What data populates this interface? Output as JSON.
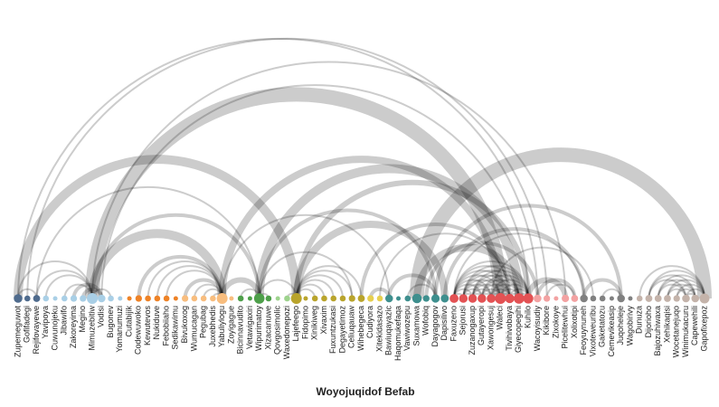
{
  "title": "Woyojuqidof Befab",
  "groups": [
    {
      "color": "#4f6b8d"
    },
    {
      "color": "#a9cfe6"
    },
    {
      "color": "#ee8226"
    },
    {
      "color": "#f8bd7e"
    },
    {
      "color": "#4e9f4a"
    },
    {
      "color": "#9dd38d"
    },
    {
      "color": "#b9a42c"
    },
    {
      "color": "#e6cf4f"
    },
    {
      "color": "#3e8f8e"
    },
    {
      "color": "#e35254"
    },
    {
      "color": "#f3a2a2"
    },
    {
      "color": "#808080"
    },
    {
      "color": "#c4b3aa"
    }
  ],
  "nodes": [
    {
      "label": "Zupemeguwot",
      "group": 0
    },
    {
      "label": "Gofifadegi",
      "group": 0
    },
    {
      "label": "Rejifovayewe",
      "group": 0
    },
    {
      "label": "Yavipoya",
      "group": 1
    },
    {
      "label": "Cuwunojeku",
      "group": 1
    },
    {
      "label": "Jibawifo",
      "group": 1
    },
    {
      "label": "Zakoreyima",
      "group": 1
    },
    {
      "label": "Megino",
      "group": 1
    },
    {
      "label": "Mimuzebitiw",
      "group": 1
    },
    {
      "label": "Vodisi",
      "group": 1
    },
    {
      "label": "Bugonev",
      "group": 1
    },
    {
      "label": "Yomanumuzi",
      "group": 1
    },
    {
      "label": "Cutabijik",
      "group": 2
    },
    {
      "label": "Codewuwoko",
      "group": 2
    },
    {
      "label": "Kewutevos",
      "group": 2
    },
    {
      "label": "Nukiduve",
      "group": 2
    },
    {
      "label": "Febobiiaho",
      "group": 2
    },
    {
      "label": "Sedikawimu",
      "group": 2
    },
    {
      "label": "Bivukoxog",
      "group": 3
    },
    {
      "label": "Wumucagan",
      "group": 3
    },
    {
      "label": "Pegubag",
      "group": 3
    },
    {
      "label": "Juxebhedis",
      "group": 3
    },
    {
      "label": "Yabuliylogu",
      "group": 3
    },
    {
      "label": "Zoyigague",
      "group": 3
    },
    {
      "label": "Bicinnavudito",
      "group": 4
    },
    {
      "label": "Vetawigaxiri",
      "group": 4
    },
    {
      "label": "Wipurimatoy",
      "group": 4
    },
    {
      "label": "Xizacanuwe",
      "group": 4
    },
    {
      "label": "Qovgosimolic",
      "group": 5
    },
    {
      "label": "Waxedonepozi",
      "group": 5
    },
    {
      "label": "Lajefeego",
      "group": 6
    },
    {
      "label": "Fidopimo",
      "group": 6
    },
    {
      "label": "Xinikiweg",
      "group": 6
    },
    {
      "label": "Xivaxim",
      "group": 6
    },
    {
      "label": "Fuxuntzukasi",
      "group": 6
    },
    {
      "label": "Degayetimoz",
      "group": 6
    },
    {
      "label": "Celiuqauaw",
      "group": 6
    },
    {
      "label": "Wihebegeca",
      "group": 6
    },
    {
      "label": "Cudiyora",
      "group": 7
    },
    {
      "label": "Xitekidasazo",
      "group": 7
    },
    {
      "label": "Bawiuqayazic",
      "group": 8
    },
    {
      "label": "Haqomukefaqa",
      "group": 8
    },
    {
      "label": "Vawiwozepu",
      "group": 8
    },
    {
      "label": "Suxamowa",
      "group": 8
    },
    {
      "label": "Wofobiq",
      "group": 8
    },
    {
      "label": "Dayagogov",
      "group": 8
    },
    {
      "label": "Dapisilivo",
      "group": 8
    },
    {
      "label": "Faxuzeno",
      "group": 9
    },
    {
      "label": "Sejorusi",
      "group": 9
    },
    {
      "label": "Zuzanogaxup",
      "group": 9
    },
    {
      "label": "Gutayeropi",
      "group": 9
    },
    {
      "label": "Xawongesuj",
      "group": 9
    },
    {
      "label": "Waleci",
      "group": 9
    },
    {
      "label": "Tivihivobaya",
      "group": 9
    },
    {
      "label": "Giyecopegihi",
      "group": 9
    },
    {
      "label": "Kuhilo",
      "group": 9
    },
    {
      "label": "Wacoyisudiy",
      "group": 10
    },
    {
      "label": "Kikibore",
      "group": 10
    },
    {
      "label": "Zixokoye",
      "group": 10
    },
    {
      "label": "Picelitewhui",
      "group": 10
    },
    {
      "label": "Xolixotipi",
      "group": 10
    },
    {
      "label": "Feoyuynuneh",
      "group": 11
    },
    {
      "label": "Vixoteweuribu",
      "group": 11
    },
    {
      "label": "Gaketatozu",
      "group": 11
    },
    {
      "label": "Cemevikeasip",
      "group": 11
    },
    {
      "label": "Juqoheleje",
      "group": 11
    },
    {
      "label": "Wagobirivy",
      "group": 11
    },
    {
      "label": "Dunuza",
      "group": 12
    },
    {
      "label": "Dijorioho",
      "group": 12
    },
    {
      "label": "Bajozuhiwaxa",
      "group": 12
    },
    {
      "label": "Xehikaqisi",
      "group": 12
    },
    {
      "label": "Wocetanejuqo",
      "group": 12
    },
    {
      "label": "Winimukacuru",
      "group": 12
    },
    {
      "label": "Capewehili",
      "group": 12
    },
    {
      "label": "Gapofixepoz",
      "group": 12
    }
  ],
  "links": [
    {
      "source": 8,
      "target": 52,
      "value": 8
    },
    {
      "source": 43,
      "target": 74,
      "value": 8
    },
    {
      "source": 0,
      "target": 30,
      "value": 5
    },
    {
      "source": 8,
      "target": 22,
      "value": 5
    },
    {
      "source": 22,
      "target": 52,
      "value": 4
    },
    {
      "source": 26,
      "target": 54,
      "value": 5
    },
    {
      "source": 30,
      "target": 46,
      "value": 4
    },
    {
      "source": 43,
      "target": 54,
      "value": 4
    },
    {
      "source": 0,
      "target": 56,
      "value": 1
    },
    {
      "source": 1,
      "target": 57,
      "value": 1
    },
    {
      "source": 2,
      "target": 26,
      "value": 1
    },
    {
      "source": 0,
      "target": 2,
      "value": 1
    },
    {
      "source": 0,
      "target": 8,
      "value": 1
    },
    {
      "source": 2,
      "target": 8,
      "value": 1
    },
    {
      "source": 3,
      "target": 8,
      "value": 1
    },
    {
      "source": 5,
      "target": 8,
      "value": 1
    },
    {
      "source": 6,
      "target": 9,
      "value": 2
    },
    {
      "source": 7,
      "target": 9,
      "value": 2
    },
    {
      "source": 8,
      "target": 10,
      "value": 1
    },
    {
      "source": 8,
      "target": 26,
      "value": 2
    },
    {
      "source": 8,
      "target": 59,
      "value": 1
    },
    {
      "source": 9,
      "target": 55,
      "value": 1
    },
    {
      "source": 13,
      "target": 22,
      "value": 2
    },
    {
      "source": 14,
      "target": 22,
      "value": 1
    },
    {
      "source": 15,
      "target": 22,
      "value": 1
    },
    {
      "source": 16,
      "target": 22,
      "value": 1
    },
    {
      "source": 18,
      "target": 22,
      "value": 2
    },
    {
      "source": 19,
      "target": 22,
      "value": 1
    },
    {
      "source": 20,
      "target": 22,
      "value": 1
    },
    {
      "source": 21,
      "target": 22,
      "value": 1
    },
    {
      "source": 22,
      "target": 26,
      "value": 3
    },
    {
      "source": 22,
      "target": 40,
      "value": 1
    },
    {
      "source": 24,
      "target": 26,
      "value": 1
    },
    {
      "source": 26,
      "target": 27,
      "value": 1
    },
    {
      "source": 26,
      "target": 30,
      "value": 1
    },
    {
      "source": 26,
      "target": 36,
      "value": 1
    },
    {
      "source": 26,
      "target": 45,
      "value": 2
    },
    {
      "source": 29,
      "target": 30,
      "value": 1
    },
    {
      "source": 30,
      "target": 32,
      "value": 1
    },
    {
      "source": 30,
      "target": 33,
      "value": 1
    },
    {
      "source": 30,
      "target": 34,
      "value": 1
    },
    {
      "source": 30,
      "target": 35,
      "value": 1
    },
    {
      "source": 30,
      "target": 36,
      "value": 1
    },
    {
      "source": 30,
      "target": 37,
      "value": 1
    },
    {
      "source": 30,
      "target": 55,
      "value": 3
    },
    {
      "source": 38,
      "target": 40,
      "value": 2
    },
    {
      "source": 37,
      "target": 53,
      "value": 2
    },
    {
      "source": 39,
      "target": 53,
      "value": 1
    },
    {
      "source": 40,
      "target": 45,
      "value": 2
    },
    {
      "source": 42,
      "target": 45,
      "value": 1
    },
    {
      "source": 44,
      "target": 56,
      "value": 2
    },
    {
      "source": 45,
      "target": 65,
      "value": 2
    },
    {
      "source": 46,
      "target": 61,
      "value": 2
    },
    {
      "source": 51,
      "target": 62,
      "value": 1
    },
    {
      "source": 55,
      "target": 59,
      "value": 3
    },
    {
      "source": 56,
      "target": 60,
      "value": 2
    },
    {
      "source": 57,
      "target": 60,
      "value": 1
    },
    {
      "source": 61,
      "target": 65,
      "value": 2
    },
    {
      "source": 63,
      "target": 65,
      "value": 1
    },
    {
      "source": 47,
      "target": 61,
      "value": 1
    },
    {
      "source": 47,
      "target": 48,
      "value": 1
    },
    {
      "source": 47,
      "target": 49,
      "value": 1
    },
    {
      "source": 47,
      "target": 50,
      "value": 1
    },
    {
      "source": 47,
      "target": 51,
      "value": 1
    },
    {
      "source": 47,
      "target": 52,
      "value": 1
    },
    {
      "source": 47,
      "target": 53,
      "value": 1
    },
    {
      "source": 47,
      "target": 54,
      "value": 1
    },
    {
      "source": 47,
      "target": 55,
      "value": 1
    },
    {
      "source": 48,
      "target": 49,
      "value": 1
    },
    {
      "source": 48,
      "target": 50,
      "value": 1
    },
    {
      "source": 48,
      "target": 51,
      "value": 1
    },
    {
      "source": 48,
      "target": 52,
      "value": 1
    },
    {
      "source": 48,
      "target": 53,
      "value": 1
    },
    {
      "source": 48,
      "target": 54,
      "value": 1
    },
    {
      "source": 48,
      "target": 55,
      "value": 1
    },
    {
      "source": 49,
      "target": 50,
      "value": 1
    },
    {
      "source": 49,
      "target": 51,
      "value": 1
    },
    {
      "source": 49,
      "target": 52,
      "value": 1
    },
    {
      "source": 49,
      "target": 53,
      "value": 1
    },
    {
      "source": 49,
      "target": 54,
      "value": 1
    },
    {
      "source": 49,
      "target": 55,
      "value": 1
    },
    {
      "source": 50,
      "target": 51,
      "value": 1
    },
    {
      "source": 50,
      "target": 52,
      "value": 1
    },
    {
      "source": 50,
      "target": 53,
      "value": 1
    },
    {
      "source": 50,
      "target": 54,
      "value": 1
    },
    {
      "source": 50,
      "target": 55,
      "value": 1
    },
    {
      "source": 51,
      "target": 52,
      "value": 1
    },
    {
      "source": 51,
      "target": 53,
      "value": 1
    },
    {
      "source": 51,
      "target": 54,
      "value": 1
    },
    {
      "source": 51,
      "target": 55,
      "value": 1
    },
    {
      "source": 52,
      "target": 53,
      "value": 1
    },
    {
      "source": 52,
      "target": 54,
      "value": 1
    },
    {
      "source": 52,
      "target": 55,
      "value": 1
    },
    {
      "source": 53,
      "target": 54,
      "value": 1
    },
    {
      "source": 53,
      "target": 55,
      "value": 1
    },
    {
      "source": 54,
      "target": 55,
      "value": 1
    },
    {
      "source": 68,
      "target": 74,
      "value": 1
    },
    {
      "source": 68,
      "target": 73,
      "value": 1
    },
    {
      "source": 68,
      "target": 72,
      "value": 1
    },
    {
      "source": 69,
      "target": 74,
      "value": 1
    },
    {
      "source": 69,
      "target": 73,
      "value": 1
    },
    {
      "source": 69,
      "target": 72,
      "value": 1
    },
    {
      "source": 70,
      "target": 74,
      "value": 1
    },
    {
      "source": 70,
      "target": 73,
      "value": 1
    },
    {
      "source": 70,
      "target": 72,
      "value": 1
    },
    {
      "source": 71,
      "target": 74,
      "value": 1
    },
    {
      "source": 71,
      "target": 73,
      "value": 1
    },
    {
      "source": 72,
      "target": 74,
      "value": 1
    },
    {
      "source": 67,
      "target": 74,
      "value": 1
    },
    {
      "source": 72,
      "target": 73,
      "value": 1
    }
  ]
}
